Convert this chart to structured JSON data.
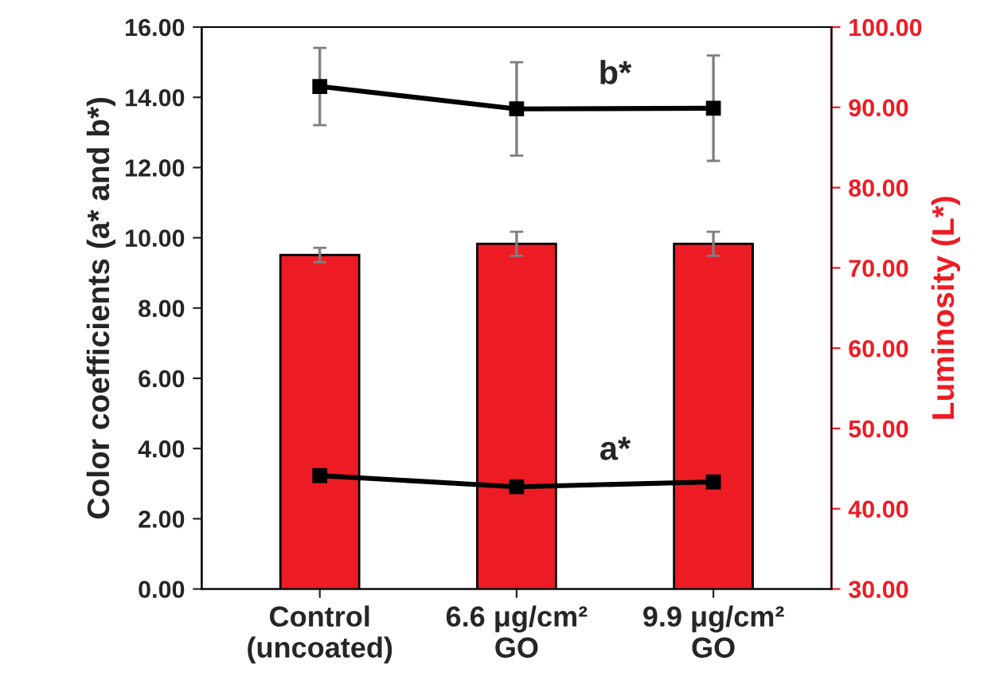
{
  "chart_data": {
    "type": "bar",
    "categories": [
      "Control\n(uncoated)",
      "6.6 μg/cm²\nGO",
      "9.9 μg/cm²\nGO"
    ],
    "ylabel": "Color coefficients (a* and b*)",
    "y2label": "Luminosity (L*)",
    "ylim": [
      0,
      16
    ],
    "yticks": [
      {
        "value": 0,
        "label": "0.00"
      },
      {
        "value": 2,
        "label": "2.00"
      },
      {
        "value": 4,
        "label": "4.00"
      },
      {
        "value": 6,
        "label": "6.00"
      },
      {
        "value": 8,
        "label": "8.00"
      },
      {
        "value": 10,
        "label": "10.00"
      },
      {
        "value": 12,
        "label": "12.00"
      },
      {
        "value": 14,
        "label": "14.00"
      },
      {
        "value": 16,
        "label": "16.00"
      }
    ],
    "y2lim": [
      30,
      100
    ],
    "y2ticks": [
      {
        "value": 30,
        "label": "30.00"
      },
      {
        "value": 40,
        "label": "40.00"
      },
      {
        "value": 50,
        "label": "50.00"
      },
      {
        "value": 60,
        "label": "60.00"
      },
      {
        "value": 70,
        "label": "70.00"
      },
      {
        "value": 80,
        "label": "80.00"
      },
      {
        "value": 90,
        "label": "90.00"
      },
      {
        "value": 100,
        "label": "100.00"
      }
    ],
    "series": [
      {
        "axis": "y2",
        "color": "#ed1c24",
        "values": [
          71.6,
          73.0,
          73.0
        ],
        "errors": [
          0.9,
          1.5,
          1.5
        ]
      },
      {
        "type": "line",
        "name": "b*",
        "color": "#000000",
        "marker": "square",
        "values": [
          14.31,
          13.67,
          13.69
        ],
        "errors": [
          1.1,
          1.33,
          1.5
        ]
      },
      {
        "type": "line",
        "name": "a*",
        "color": "#000000",
        "marker": "square",
        "values": [
          3.23,
          2.91,
          3.05
        ],
        "errors": [
          0.1,
          0.1,
          0.1
        ]
      }
    ],
    "grid": false,
    "legend": false,
    "line_style": "solid"
  }
}
